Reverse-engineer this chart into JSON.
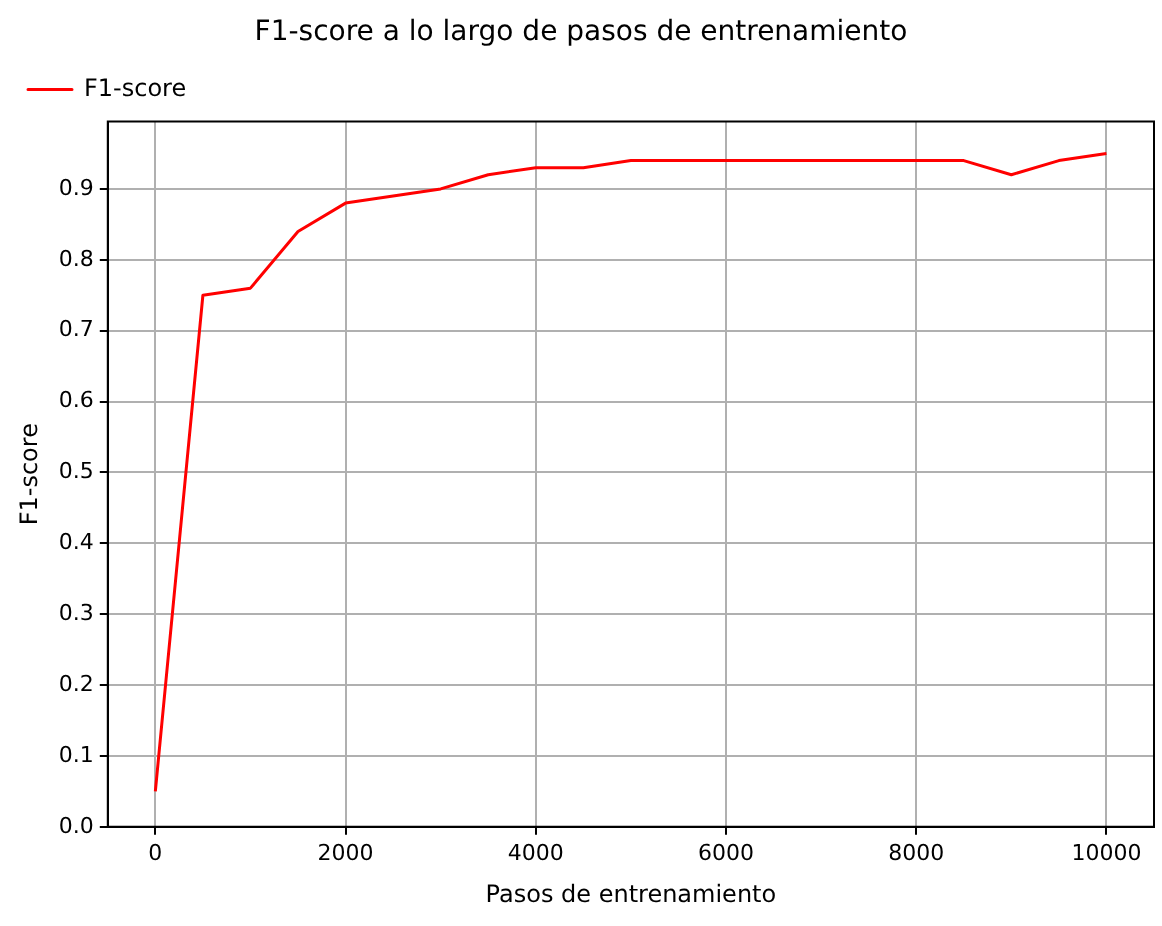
{
  "chart_data": {
    "type": "line",
    "title": "F1-score a lo largo de pasos de entrenamiento",
    "xlabel": "Pasos de entrenamiento",
    "ylabel": "F1-score",
    "x": [
      0,
      500,
      1000,
      1500,
      2000,
      2500,
      3000,
      3500,
      4000,
      4500,
      5000,
      5500,
      6000,
      6500,
      7000,
      7500,
      8000,
      8500,
      9000,
      9500,
      10000
    ],
    "series": [
      {
        "name": "F1-score",
        "color": "#ff0000",
        "values": [
          0.05,
          0.75,
          0.76,
          0.84,
          0.88,
          0.89,
          0.9,
          0.92,
          0.93,
          0.93,
          0.94,
          0.94,
          0.94,
          0.94,
          0.94,
          0.94,
          0.94,
          0.94,
          0.92,
          0.94,
          0.95
        ]
      }
    ],
    "xlim": [
      -500,
      10500
    ],
    "ylim": [
      0,
      0.995
    ],
    "xticks": [
      0,
      2000,
      4000,
      6000,
      8000,
      10000
    ],
    "yticks": [
      {
        "value": 0,
        "label": "0.0"
      },
      0.1,
      0.2,
      0.3,
      0.4,
      0.5,
      0.6,
      0.7,
      0.8,
      0.9
    ],
    "grid": true,
    "legend": "top left",
    "marker": "none",
    "line_style": "solid"
  }
}
